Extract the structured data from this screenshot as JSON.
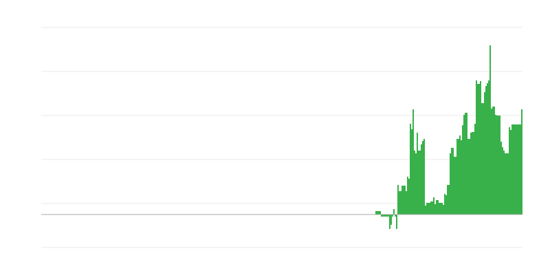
{
  "chart_data": {
    "type": "bar",
    "title": "",
    "xlabel": "",
    "ylabel": "",
    "ylim": [
      -48,
      272
    ],
    "grid_values": [
      -48,
      16,
      80,
      144,
      208,
      272
    ],
    "grid": true,
    "bar_color": "#39b14a",
    "grid_color": "#ebebeb",
    "baseline_color": "#aaaaaa",
    "values": [
      5,
      5,
      5,
      5,
      -3,
      -3,
      -3,
      -3,
      -3,
      -3,
      -21,
      -15,
      -3,
      8,
      -3,
      -21,
      43,
      34,
      34,
      42,
      42,
      42,
      34,
      55,
      52,
      132,
      124,
      153,
      93,
      89,
      119,
      93,
      93,
      102,
      107,
      110,
      13,
      17,
      17,
      17,
      19,
      19,
      25,
      15,
      21,
      21,
      17,
      17,
      17,
      14,
      30,
      28,
      43,
      43,
      89,
      97,
      97,
      84,
      84,
      110,
      110,
      115,
      108,
      130,
      145,
      148,
      148,
      110,
      110,
      119,
      120,
      120,
      132,
      195,
      190,
      190,
      194,
      162,
      162,
      178,
      187,
      191,
      195,
      246,
      154,
      157,
      157,
      145,
      144,
      144,
      144,
      106,
      98,
      93,
      89,
      89,
      89,
      127,
      123,
      131,
      131,
      131,
      131,
      131,
      131,
      131,
      153
    ]
  }
}
